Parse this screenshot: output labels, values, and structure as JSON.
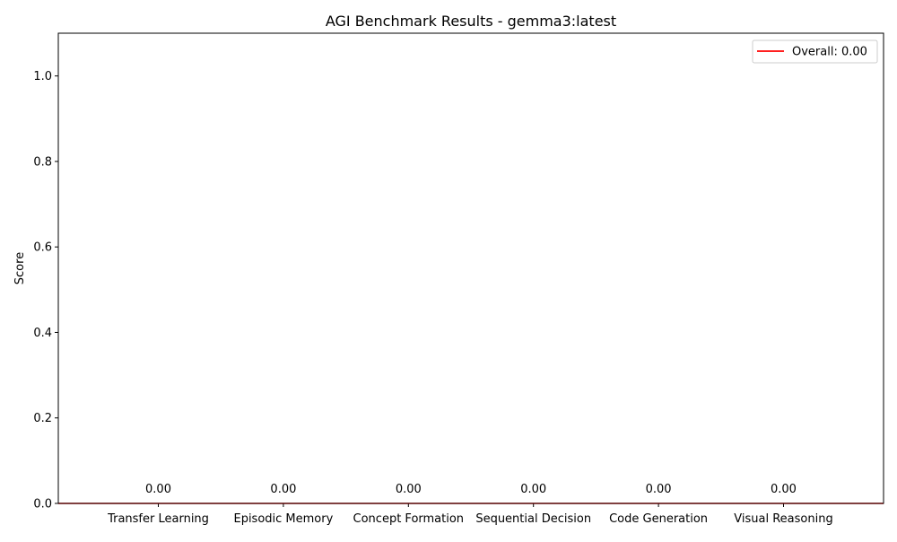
{
  "chart_data": {
    "type": "bar",
    "title": "AGI Benchmark Results - gemma3:latest",
    "xlabel": "",
    "ylabel": "Score",
    "categories": [
      "Transfer Learning",
      "Episodic Memory",
      "Concept Formation",
      "Sequential Decision",
      "Code Generation",
      "Visual Reasoning"
    ],
    "values": [
      0.0,
      0.0,
      0.0,
      0.0,
      0.0,
      0.0
    ],
    "data_labels": [
      "0.00",
      "0.00",
      "0.00",
      "0.00",
      "0.00",
      "0.00"
    ],
    "ylim": [
      0,
      1.1
    ],
    "yticks": [
      0.0,
      0.2,
      0.4,
      0.6,
      0.8,
      1.0
    ],
    "ytick_labels": [
      "0.0",
      "0.2",
      "0.4",
      "0.6",
      "0.8",
      "1.0"
    ],
    "bar_color": "#1f77b4",
    "reference_line": {
      "label": "Overall: 0.00",
      "value": 0.0,
      "color": "#ff0000"
    },
    "legend_position": "top-right",
    "grid": false
  }
}
